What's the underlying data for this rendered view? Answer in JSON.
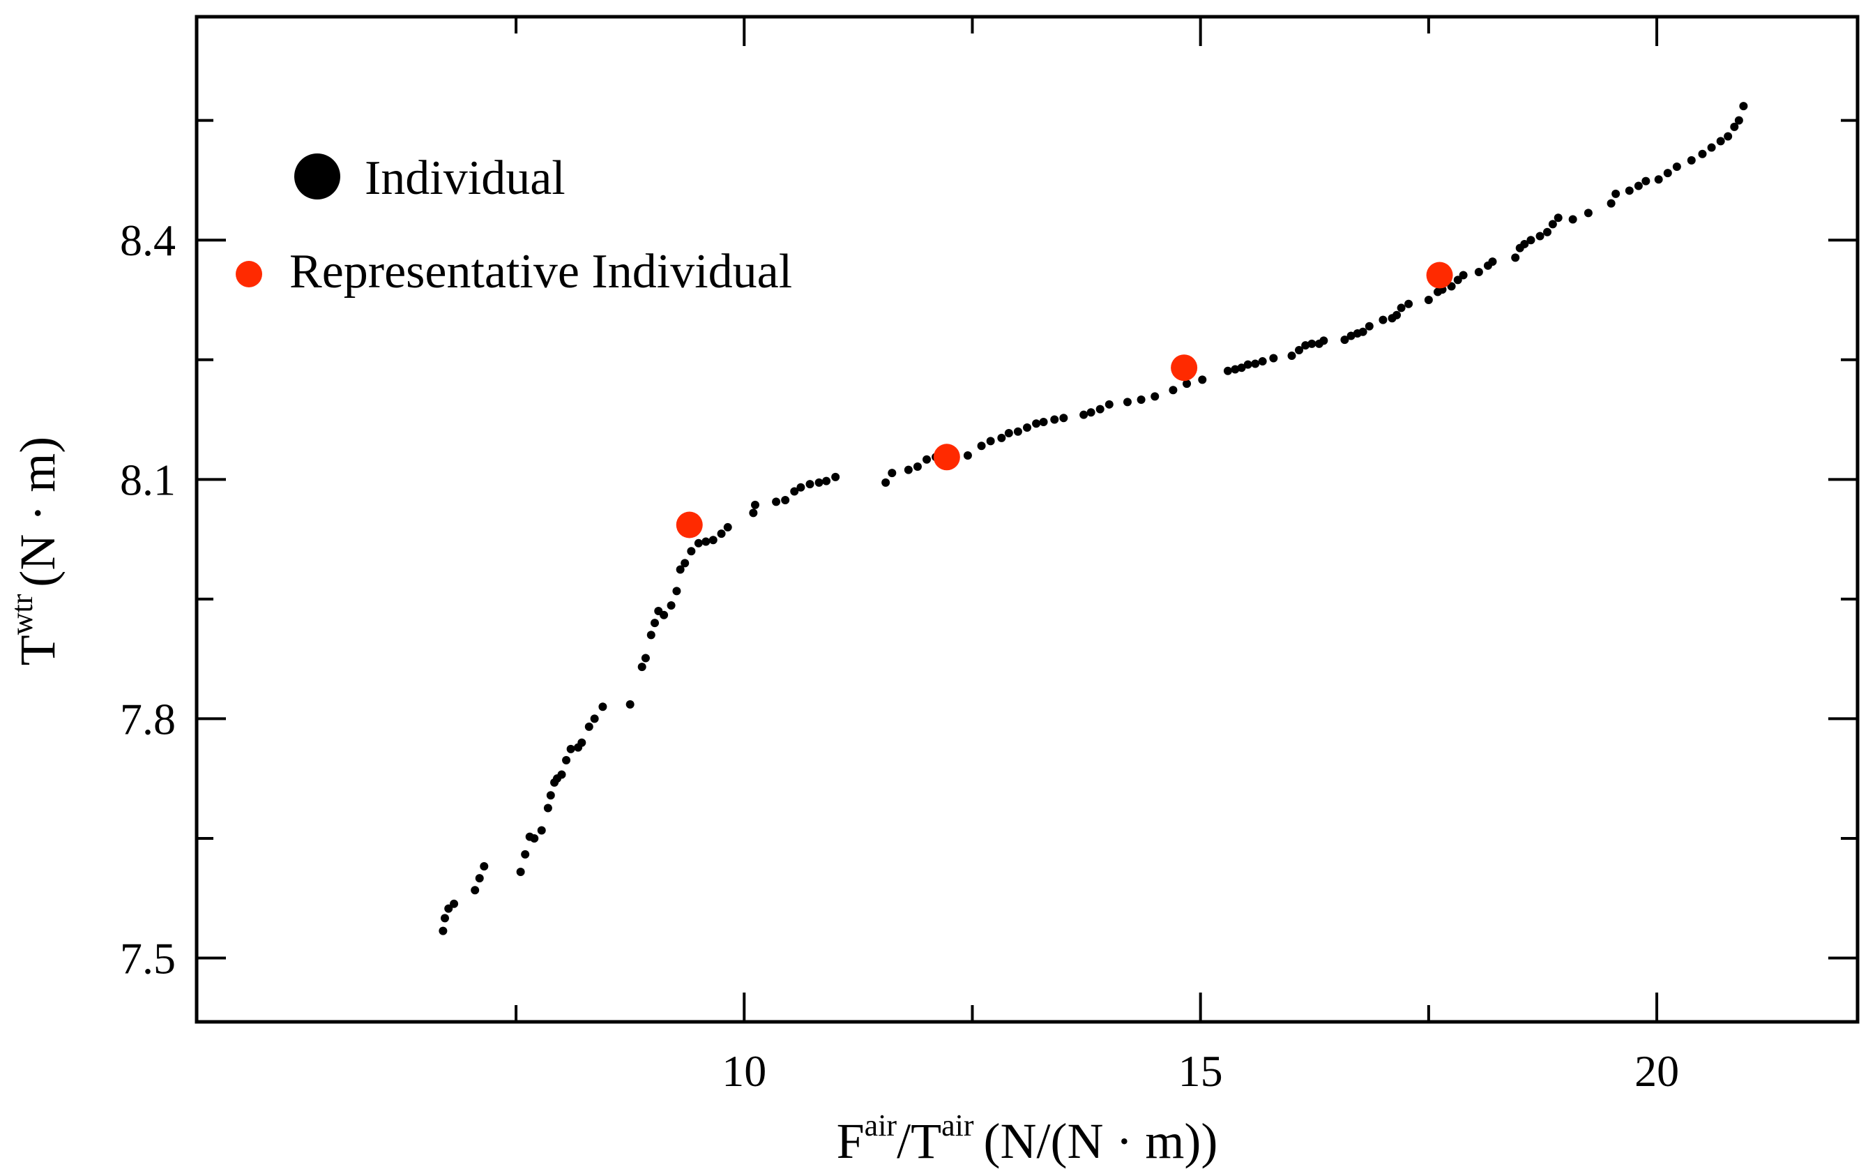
{
  "chart_data": {
    "type": "scatter",
    "xlabel": {
      "base1": "F",
      "sup1": "air",
      "sep": "/",
      "base2": "T",
      "sup2": "air",
      "unit": "(N/(N · m))"
    },
    "ylabel": {
      "base": "T",
      "sup": "wtr",
      "unit": "(N · m)"
    },
    "xlim": [
      4,
      22.2
    ],
    "ylim": [
      7.42,
      8.68
    ],
    "x_ticks": [
      {
        "value": 10,
        "label": "10"
      },
      {
        "value": 15,
        "label": "15"
      },
      {
        "value": 20,
        "label": "20"
      }
    ],
    "x_minor_ticks": [
      7.5,
      12.5,
      17.5
    ],
    "y_ticks": [
      {
        "value": 7.5,
        "label": "7.5"
      },
      {
        "value": 7.8,
        "label": "7.8"
      },
      {
        "value": 8.1,
        "label": "8.1"
      },
      {
        "value": 8.4,
        "label": "8.4"
      }
    ],
    "y_minor_ticks": [
      7.65,
      7.95,
      8.25,
      8.55
    ],
    "legend": {
      "position": "top-left",
      "entries": [
        {
          "label": "Individual",
          "color": "#000000"
        },
        {
          "label": "Representative Individual",
          "color": "#ff2a00"
        }
      ]
    },
    "series": [
      {
        "name": "Individual",
        "color": "#000000",
        "points": [
          [
            6.7,
            7.534
          ],
          [
            6.72,
            7.55
          ],
          [
            6.76,
            7.562
          ],
          [
            6.82,
            7.568
          ],
          [
            7.05,
            7.585
          ],
          [
            7.1,
            7.6
          ],
          [
            7.15,
            7.615
          ],
          [
            7.55,
            7.608
          ],
          [
            7.6,
            7.63
          ],
          [
            7.65,
            7.652
          ],
          [
            7.7,
            7.65
          ],
          [
            7.78,
            7.66
          ],
          [
            7.85,
            7.688
          ],
          [
            7.88,
            7.704
          ],
          [
            7.92,
            7.72
          ],
          [
            7.95,
            7.725
          ],
          [
            8.0,
            7.73
          ],
          [
            8.05,
            7.748
          ],
          [
            8.1,
            7.762
          ],
          [
            8.18,
            7.764
          ],
          [
            8.22,
            7.77
          ],
          [
            8.3,
            7.79
          ],
          [
            8.36,
            7.8
          ],
          [
            8.45,
            7.815
          ],
          [
            8.75,
            7.818
          ],
          [
            8.88,
            7.865
          ],
          [
            8.92,
            7.876
          ],
          [
            8.98,
            7.905
          ],
          [
            9.02,
            7.92
          ],
          [
            9.06,
            7.935
          ],
          [
            9.12,
            7.93
          ],
          [
            9.2,
            7.942
          ],
          [
            9.26,
            7.96
          ],
          [
            9.3,
            7.987
          ],
          [
            9.35,
            7.995
          ],
          [
            9.42,
            8.01
          ],
          [
            9.5,
            8.02
          ],
          [
            9.58,
            8.022
          ],
          [
            9.66,
            8.024
          ],
          [
            9.75,
            8.032
          ],
          [
            9.82,
            8.04
          ],
          [
            10.1,
            8.058
          ],
          [
            10.12,
            8.068
          ],
          [
            10.35,
            8.072
          ],
          [
            10.45,
            8.074
          ],
          [
            10.55,
            8.085
          ],
          [
            10.62,
            8.09
          ],
          [
            10.72,
            8.094
          ],
          [
            10.82,
            8.096
          ],
          [
            10.9,
            8.098
          ],
          [
            11.0,
            8.103
          ],
          [
            11.55,
            8.096
          ],
          [
            11.62,
            8.108
          ],
          [
            11.8,
            8.112
          ],
          [
            11.9,
            8.116
          ],
          [
            12.0,
            8.125
          ],
          [
            12.1,
            8.128
          ],
          [
            12.45,
            8.13
          ],
          [
            12.6,
            8.142
          ],
          [
            12.7,
            8.148
          ],
          [
            12.82,
            8.152
          ],
          [
            12.9,
            8.158
          ],
          [
            13.0,
            8.16
          ],
          [
            13.1,
            8.165
          ],
          [
            13.2,
            8.17
          ],
          [
            13.28,
            8.172
          ],
          [
            13.4,
            8.175
          ],
          [
            13.5,
            8.177
          ],
          [
            13.72,
            8.181
          ],
          [
            13.8,
            8.184
          ],
          [
            13.9,
            8.188
          ],
          [
            14.0,
            8.194
          ],
          [
            14.2,
            8.197
          ],
          [
            14.35,
            8.2
          ],
          [
            14.5,
            8.204
          ],
          [
            14.7,
            8.212
          ],
          [
            14.85,
            8.22
          ],
          [
            15.02,
            8.225
          ],
          [
            15.3,
            8.236
          ],
          [
            15.38,
            8.238
          ],
          [
            15.45,
            8.24
          ],
          [
            15.52,
            8.244
          ],
          [
            15.6,
            8.245
          ],
          [
            15.68,
            8.248
          ],
          [
            15.8,
            8.252
          ],
          [
            16.0,
            8.255
          ],
          [
            16.08,
            8.262
          ],
          [
            16.15,
            8.268
          ],
          [
            16.22,
            8.27
          ],
          [
            16.3,
            8.27
          ],
          [
            16.35,
            8.274
          ],
          [
            16.58,
            8.275
          ],
          [
            16.65,
            8.28
          ],
          [
            16.72,
            8.283
          ],
          [
            16.78,
            8.285
          ],
          [
            16.85,
            8.292
          ],
          [
            17.0,
            8.3
          ],
          [
            17.1,
            8.302
          ],
          [
            17.15,
            8.306
          ],
          [
            17.2,
            8.315
          ],
          [
            17.28,
            8.32
          ],
          [
            17.5,
            8.325
          ],
          [
            17.6,
            8.335
          ],
          [
            17.65,
            8.338
          ],
          [
            17.75,
            8.342
          ],
          [
            17.82,
            8.35
          ],
          [
            17.88,
            8.356
          ],
          [
            18.05,
            8.36
          ],
          [
            18.15,
            8.368
          ],
          [
            18.2,
            8.373
          ],
          [
            18.45,
            8.378
          ],
          [
            18.5,
            8.39
          ],
          [
            18.55,
            8.395
          ],
          [
            18.62,
            8.4
          ],
          [
            18.72,
            8.405
          ],
          [
            18.8,
            8.41
          ],
          [
            18.86,
            8.42
          ],
          [
            18.92,
            8.428
          ],
          [
            19.08,
            8.426
          ],
          [
            19.25,
            8.434
          ],
          [
            19.5,
            8.446
          ],
          [
            19.55,
            8.458
          ],
          [
            19.7,
            8.462
          ],
          [
            19.8,
            8.468
          ],
          [
            19.88,
            8.474
          ],
          [
            20.02,
            8.476
          ],
          [
            20.12,
            8.484
          ],
          [
            20.22,
            8.492
          ],
          [
            20.38,
            8.5
          ],
          [
            20.5,
            8.508
          ],
          [
            20.6,
            8.516
          ],
          [
            20.7,
            8.524
          ],
          [
            20.78,
            8.53
          ],
          [
            20.85,
            8.542
          ],
          [
            20.9,
            8.55
          ],
          [
            20.95,
            8.568
          ]
        ]
      },
      {
        "name": "Representative Individual",
        "color": "#ff2a00",
        "points": [
          [
            9.4,
            8.043
          ],
          [
            12.22,
            8.128
          ],
          [
            14.82,
            8.24
          ],
          [
            17.62,
            8.356
          ]
        ]
      }
    ]
  }
}
